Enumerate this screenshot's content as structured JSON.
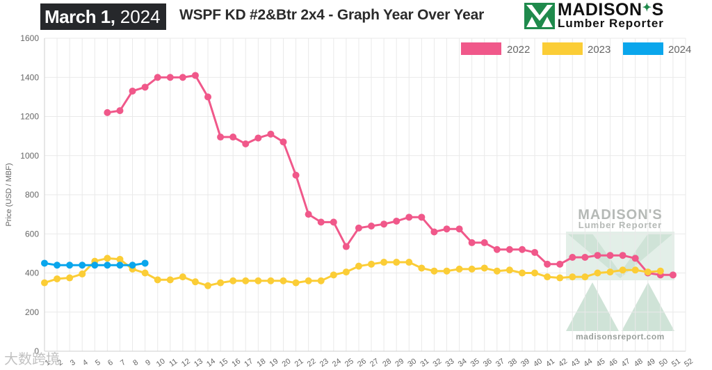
{
  "header": {
    "date_month_day": "March 1,",
    "date_year": "2024",
    "title": "WSPF KD #2&Btr 2x4 - Graph Year Over Year"
  },
  "logo": {
    "line1": "MADISON",
    "line1_suffix": "S",
    "line2": "Lumber Reporter"
  },
  "watermark": {
    "top": "MADISON'S",
    "sub": "Lumber Reporter",
    "url": "madisonsreport.com"
  },
  "corner_watermark": "大数跨境",
  "chart_data": {
    "type": "line",
    "title": "WSPF KD #2&Btr 2x4 - Graph Year Over Year",
    "xlabel": "",
    "ylabel": "Price (USD / MBF)",
    "ylim": [
      0,
      1600
    ],
    "yticks": [
      0,
      200,
      400,
      600,
      800,
      1000,
      1200,
      1400,
      1600
    ],
    "x": [
      1,
      2,
      3,
      4,
      5,
      6,
      7,
      8,
      9,
      10,
      11,
      12,
      13,
      14,
      15,
      16,
      17,
      18,
      19,
      20,
      21,
      22,
      23,
      24,
      25,
      26,
      27,
      28,
      29,
      30,
      31,
      32,
      33,
      34,
      35,
      36,
      37,
      38,
      39,
      40,
      41,
      42,
      43,
      44,
      45,
      46,
      47,
      48,
      49,
      50,
      51,
      52
    ],
    "grid": true,
    "legend": "top-right",
    "series": [
      {
        "name": "2022",
        "color": "#f0588a",
        "values": [
          null,
          null,
          null,
          null,
          null,
          1220,
          1230,
          1330,
          1350,
          1400,
          1400,
          1400,
          1410,
          1300,
          1095,
          1095,
          1060,
          1090,
          1110,
          1070,
          900,
          700,
          660,
          660,
          535,
          630,
          640,
          650,
          665,
          685,
          685,
          610,
          625,
          625,
          555,
          555,
          520,
          520,
          520,
          505,
          445,
          445,
          480,
          480,
          490,
          490,
          490,
          475,
          400,
          390,
          390,
          null
        ]
      },
      {
        "name": "2023",
        "color": "#fbcd36",
        "values": [
          350,
          370,
          375,
          395,
          460,
          475,
          470,
          420,
          400,
          365,
          365,
          380,
          355,
          335,
          350,
          360,
          360,
          360,
          360,
          360,
          350,
          360,
          360,
          390,
          405,
          435,
          445,
          455,
          455,
          455,
          425,
          410,
          410,
          420,
          420,
          425,
          410,
          415,
          400,
          400,
          380,
          375,
          380,
          380,
          400,
          405,
          415,
          415,
          405,
          410,
          null,
          null
        ]
      },
      {
        "name": "2024",
        "color": "#0aa6ec",
        "values": [
          450,
          440,
          440,
          440,
          440,
          440,
          440,
          440,
          450,
          null,
          null,
          null,
          null,
          null,
          null,
          null,
          null,
          null,
          null,
          null,
          null,
          null,
          null,
          null,
          null,
          null,
          null,
          null,
          null,
          null,
          null,
          null,
          null,
          null,
          null,
          null,
          null,
          null,
          null,
          null,
          null,
          null,
          null,
          null,
          null,
          null,
          null,
          null,
          null,
          null,
          null,
          null
        ]
      }
    ]
  }
}
